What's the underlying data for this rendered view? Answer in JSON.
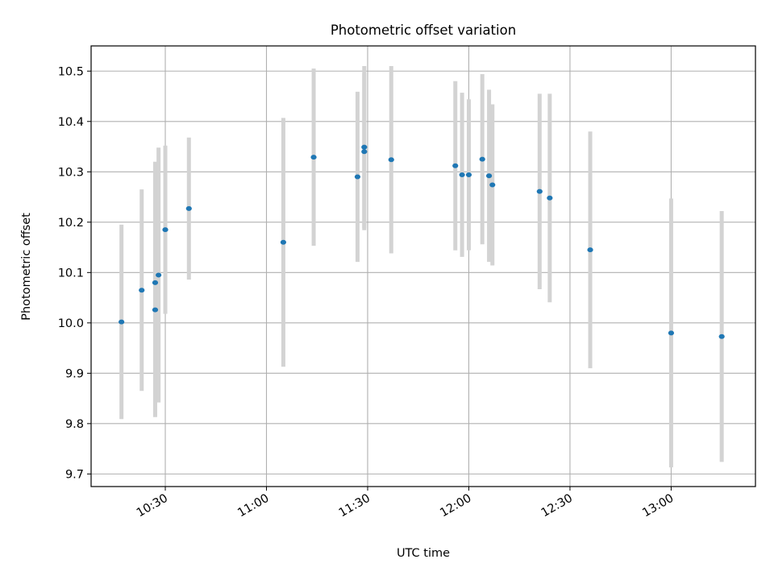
{
  "chart_data": {
    "type": "scatter",
    "title": "Photometric offset variation",
    "xlabel": "UTC time",
    "ylabel": "Photometric offset",
    "grid": true,
    "xlim": [
      "10:08",
      "13:25"
    ],
    "ylim": [
      9.675,
      10.55
    ],
    "x_ticks": [
      "10:30",
      "11:00",
      "11:30",
      "12:00",
      "12:30",
      "13:00"
    ],
    "y_ticks": [
      9.7,
      9.8,
      9.9,
      10.0,
      10.1,
      10.2,
      10.3,
      10.4,
      10.5
    ],
    "y_tick_labels": [
      "9.7",
      "9.8",
      "9.9",
      "10.0",
      "10.1",
      "10.2",
      "10.3",
      "10.4",
      "10.5"
    ],
    "colors": {
      "point": "#1f77b4",
      "errorbar": "#d3d3d3",
      "grid": "#b0b0b0"
    },
    "series": [
      {
        "points": [
          {
            "x": "10:17",
            "y": 10.002,
            "err": 0.193
          },
          {
            "x": "10:23",
            "y": 10.065,
            "err": 0.2
          },
          {
            "x": "10:27",
            "y": 10.026,
            "err": 0.213
          },
          {
            "x": "10:27",
            "y": 10.08,
            "err": 0.24
          },
          {
            "x": "10:28",
            "y": 10.095,
            "err": 0.253
          },
          {
            "x": "10:30",
            "y": 10.185,
            "err": 0.167
          },
          {
            "x": "10:37",
            "y": 10.227,
            "err": 0.141
          },
          {
            "x": "11:05",
            "y": 10.16,
            "err": 0.247
          },
          {
            "x": "11:14",
            "y": 10.329,
            "err": 0.176
          },
          {
            "x": "11:27",
            "y": 10.29,
            "err": 0.169
          },
          {
            "x": "11:29",
            "y": 10.349,
            "err": 0.161
          },
          {
            "x": "11:29",
            "y": 10.34,
            "err": 0.156
          },
          {
            "x": "11:37",
            "y": 10.324,
            "err": 0.186
          },
          {
            "x": "11:56",
            "y": 10.312,
            "err": 0.168
          },
          {
            "x": "11:58",
            "y": 10.294,
            "err": 0.163
          },
          {
            "x": "12:00",
            "y": 10.294,
            "err": 0.15
          },
          {
            "x": "12:04",
            "y": 10.325,
            "err": 0.169
          },
          {
            "x": "12:06",
            "y": 10.292,
            "err": 0.171
          },
          {
            "x": "12:07",
            "y": 10.274,
            "err": 0.16
          },
          {
            "x": "12:21",
            "y": 10.261,
            "err": 0.194
          },
          {
            "x": "12:24",
            "y": 10.248,
            "err": 0.207
          },
          {
            "x": "12:36",
            "y": 10.145,
            "err": 0.235
          },
          {
            "x": "13:00",
            "y": 9.98,
            "err": 0.267
          },
          {
            "x": "13:15",
            "y": 9.973,
            "err": 0.249
          }
        ]
      }
    ]
  }
}
